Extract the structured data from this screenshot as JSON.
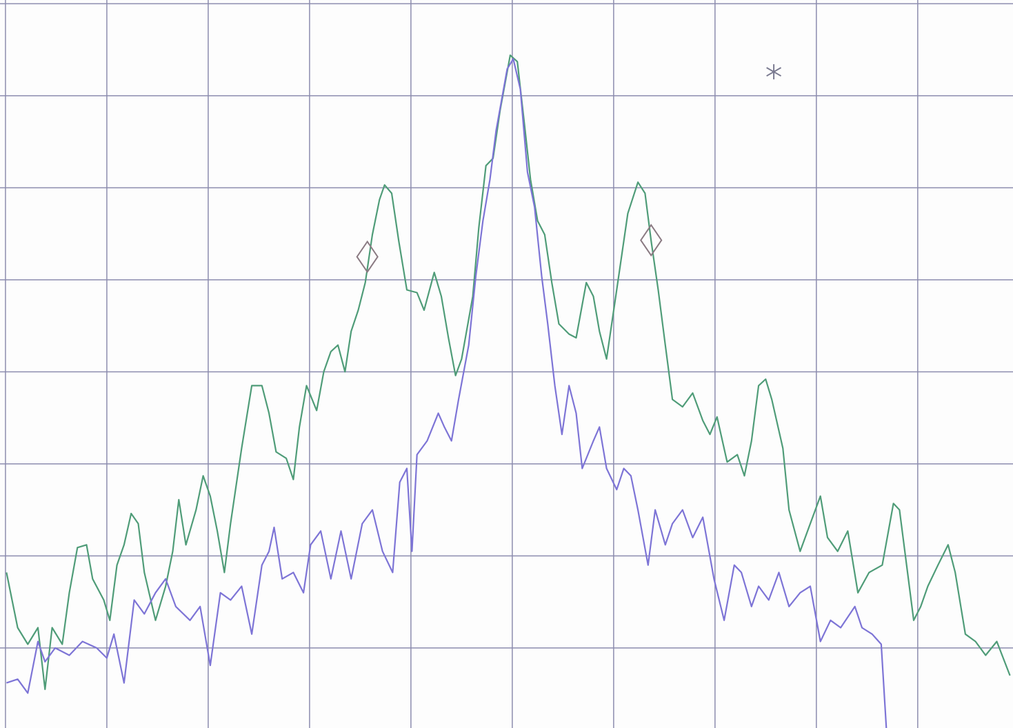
{
  "chart_data": {
    "type": "line",
    "xlim": [
      -0.054,
      9.94
    ],
    "ylim": [
      0.13,
      8.04
    ],
    "xticks": [
      0,
      1,
      2,
      3,
      4,
      5,
      6,
      7,
      8,
      9
    ],
    "yticks": [
      1,
      2,
      3,
      4,
      5,
      6,
      7,
      8
    ],
    "grid": true,
    "grid_color": "#8c8cae",
    "series": [
      {
        "color": "#4f9c78",
        "x": [
          0.01,
          0.12,
          0.22,
          0.32,
          0.39,
          0.46,
          0.56,
          0.63,
          0.71,
          0.8,
          0.86,
          0.97,
          1.03,
          1.1,
          1.17,
          1.24,
          1.31,
          1.37,
          1.48,
          1.58,
          1.65,
          1.71,
          1.78,
          1.88,
          1.95,
          2.02,
          2.09,
          2.16,
          2.22,
          2.33,
          2.43,
          2.53,
          2.6,
          2.67,
          2.77,
          2.84,
          2.9,
          2.97,
          3.07,
          3.14,
          3.21,
          3.28,
          3.35,
          3.41,
          3.48,
          3.55,
          3.62,
          3.69,
          3.74,
          3.81,
          3.88,
          3.96,
          4.06,
          4.13,
          4.23,
          4.3,
          4.37,
          4.44,
          4.5,
          4.61,
          4.67,
          4.74,
          4.81,
          4.88,
          4.98,
          5.05,
          5.12,
          5.18,
          5.25,
          5.32,
          5.39,
          5.46,
          5.56,
          5.63,
          5.73,
          5.8,
          5.86,
          5.93,
          6.03,
          6.14,
          6.24,
          6.31,
          6.37,
          6.44,
          6.51,
          6.58,
          6.68,
          6.78,
          6.88,
          6.95,
          7.02,
          7.12,
          7.22,
          7.29,
          7.36,
          7.43,
          7.5,
          7.56,
          7.67,
          7.73,
          7.84,
          7.94,
          8.04,
          8.11,
          8.21,
          8.31,
          8.41,
          8.52,
          8.65,
          8.76,
          8.82,
          8.89,
          8.96,
          9.03,
          9.1,
          9.2,
          9.3,
          9.37,
          9.47,
          9.57,
          9.67,
          9.78,
          9.91
        ],
        "values": [
          1.82,
          1.22,
          1.04,
          1.22,
          0.55,
          1.22,
          1.04,
          1.6,
          2.09,
          2.12,
          1.75,
          1.52,
          1.3,
          1.9,
          2.12,
          2.46,
          2.35,
          1.82,
          1.3,
          1.67,
          2.05,
          2.61,
          2.12,
          2.5,
          2.87,
          2.65,
          2.27,
          1.82,
          2.35,
          3.17,
          3.85,
          3.85,
          3.55,
          3.13,
          3.06,
          2.83,
          3.4,
          3.85,
          3.58,
          4.0,
          4.22,
          4.29,
          4.0,
          4.44,
          4.67,
          4.97,
          5.49,
          5.87,
          6.03,
          5.94,
          5.42,
          4.89,
          4.86,
          4.67,
          5.08,
          4.82,
          4.37,
          3.96,
          4.14,
          4.82,
          5.57,
          6.24,
          6.32,
          6.84,
          7.44,
          7.37,
          6.69,
          6.09,
          5.64,
          5.49,
          4.97,
          4.52,
          4.41,
          4.37,
          4.97,
          4.82,
          4.44,
          4.14,
          4.89,
          5.72,
          6.06,
          5.94,
          5.42,
          4.89,
          4.29,
          3.7,
          3.62,
          3.77,
          3.47,
          3.32,
          3.51,
          3.02,
          3.1,
          2.87,
          3.25,
          3.85,
          3.92,
          3.7,
          3.17,
          2.5,
          2.05,
          2.35,
          2.65,
          2.2,
          2.05,
          2.27,
          1.6,
          1.82,
          1.9,
          2.57,
          2.5,
          1.9,
          1.3,
          1.45,
          1.67,
          1.9,
          2.12,
          1.82,
          1.15,
          1.07,
          0.92,
          1.07,
          0.7
        ]
      },
      {
        "color": "#7d74d6",
        "x": [
          0.01,
          0.12,
          0.22,
          0.32,
          0.39,
          0.49,
          0.63,
          0.76,
          0.9,
          1.0,
          1.07,
          1.17,
          1.27,
          1.37,
          1.48,
          1.58,
          1.68,
          1.82,
          1.92,
          2.02,
          2.12,
          2.22,
          2.33,
          2.43,
          2.53,
          2.6,
          2.65,
          2.73,
          2.84,
          2.94,
          3.01,
          3.11,
          3.21,
          3.31,
          3.41,
          3.52,
          3.62,
          3.72,
          3.82,
          3.89,
          3.96,
          4.01,
          4.06,
          4.16,
          4.27,
          4.33,
          4.4,
          4.47,
          4.57,
          4.64,
          4.71,
          4.78,
          4.84,
          4.95,
          5.01,
          5.08,
          5.15,
          5.22,
          5.29,
          5.35,
          5.42,
          5.49,
          5.56,
          5.63,
          5.69,
          5.8,
          5.86,
          5.93,
          6.03,
          6.1,
          6.17,
          6.24,
          6.34,
          6.41,
          6.51,
          6.58,
          6.68,
          6.78,
          6.88,
          6.99,
          7.09,
          7.19,
          7.26,
          7.36,
          7.43,
          7.53,
          7.63,
          7.73,
          7.84,
          7.94,
          8.04,
          8.14,
          8.24,
          8.38,
          8.45,
          8.55,
          8.64,
          8.69
        ],
        "values": [
          0.62,
          0.66,
          0.51,
          1.07,
          0.85,
          1.0,
          0.92,
          1.07,
          1.0,
          0.89,
          1.15,
          0.62,
          1.52,
          1.37,
          1.6,
          1.75,
          1.45,
          1.3,
          1.45,
          0.81,
          1.6,
          1.52,
          1.67,
          1.15,
          1.9,
          2.05,
          2.31,
          1.75,
          1.82,
          1.6,
          2.12,
          2.27,
          1.75,
          2.27,
          1.75,
          2.35,
          2.5,
          2.05,
          1.82,
          2.8,
          2.95,
          2.05,
          3.1,
          3.25,
          3.55,
          3.4,
          3.25,
          3.7,
          4.29,
          5.04,
          5.64,
          6.09,
          6.62,
          7.29,
          7.4,
          7.07,
          6.17,
          5.79,
          5.04,
          4.52,
          3.85,
          3.32,
          3.85,
          3.55,
          2.95,
          3.25,
          3.4,
          2.95,
          2.72,
          2.95,
          2.87,
          2.5,
          1.9,
          2.5,
          2.12,
          2.35,
          2.5,
          2.2,
          2.42,
          1.75,
          1.3,
          1.9,
          1.82,
          1.45,
          1.67,
          1.52,
          1.82,
          1.45,
          1.6,
          1.67,
          1.07,
          1.3,
          1.22,
          1.45,
          1.22,
          1.15,
          1.04,
          0.13
        ]
      }
    ],
    "markers": [
      {
        "shape": "diamond",
        "color": "#8a7a82",
        "x": 3.57,
        "y": 5.25
      },
      {
        "shape": "diamond",
        "color": "#8a7a82",
        "x": 6.37,
        "y": 5.43
      },
      {
        "shape": "asterisk",
        "color": "#7a7a90",
        "x": 7.58,
        "y": 7.26
      }
    ]
  }
}
